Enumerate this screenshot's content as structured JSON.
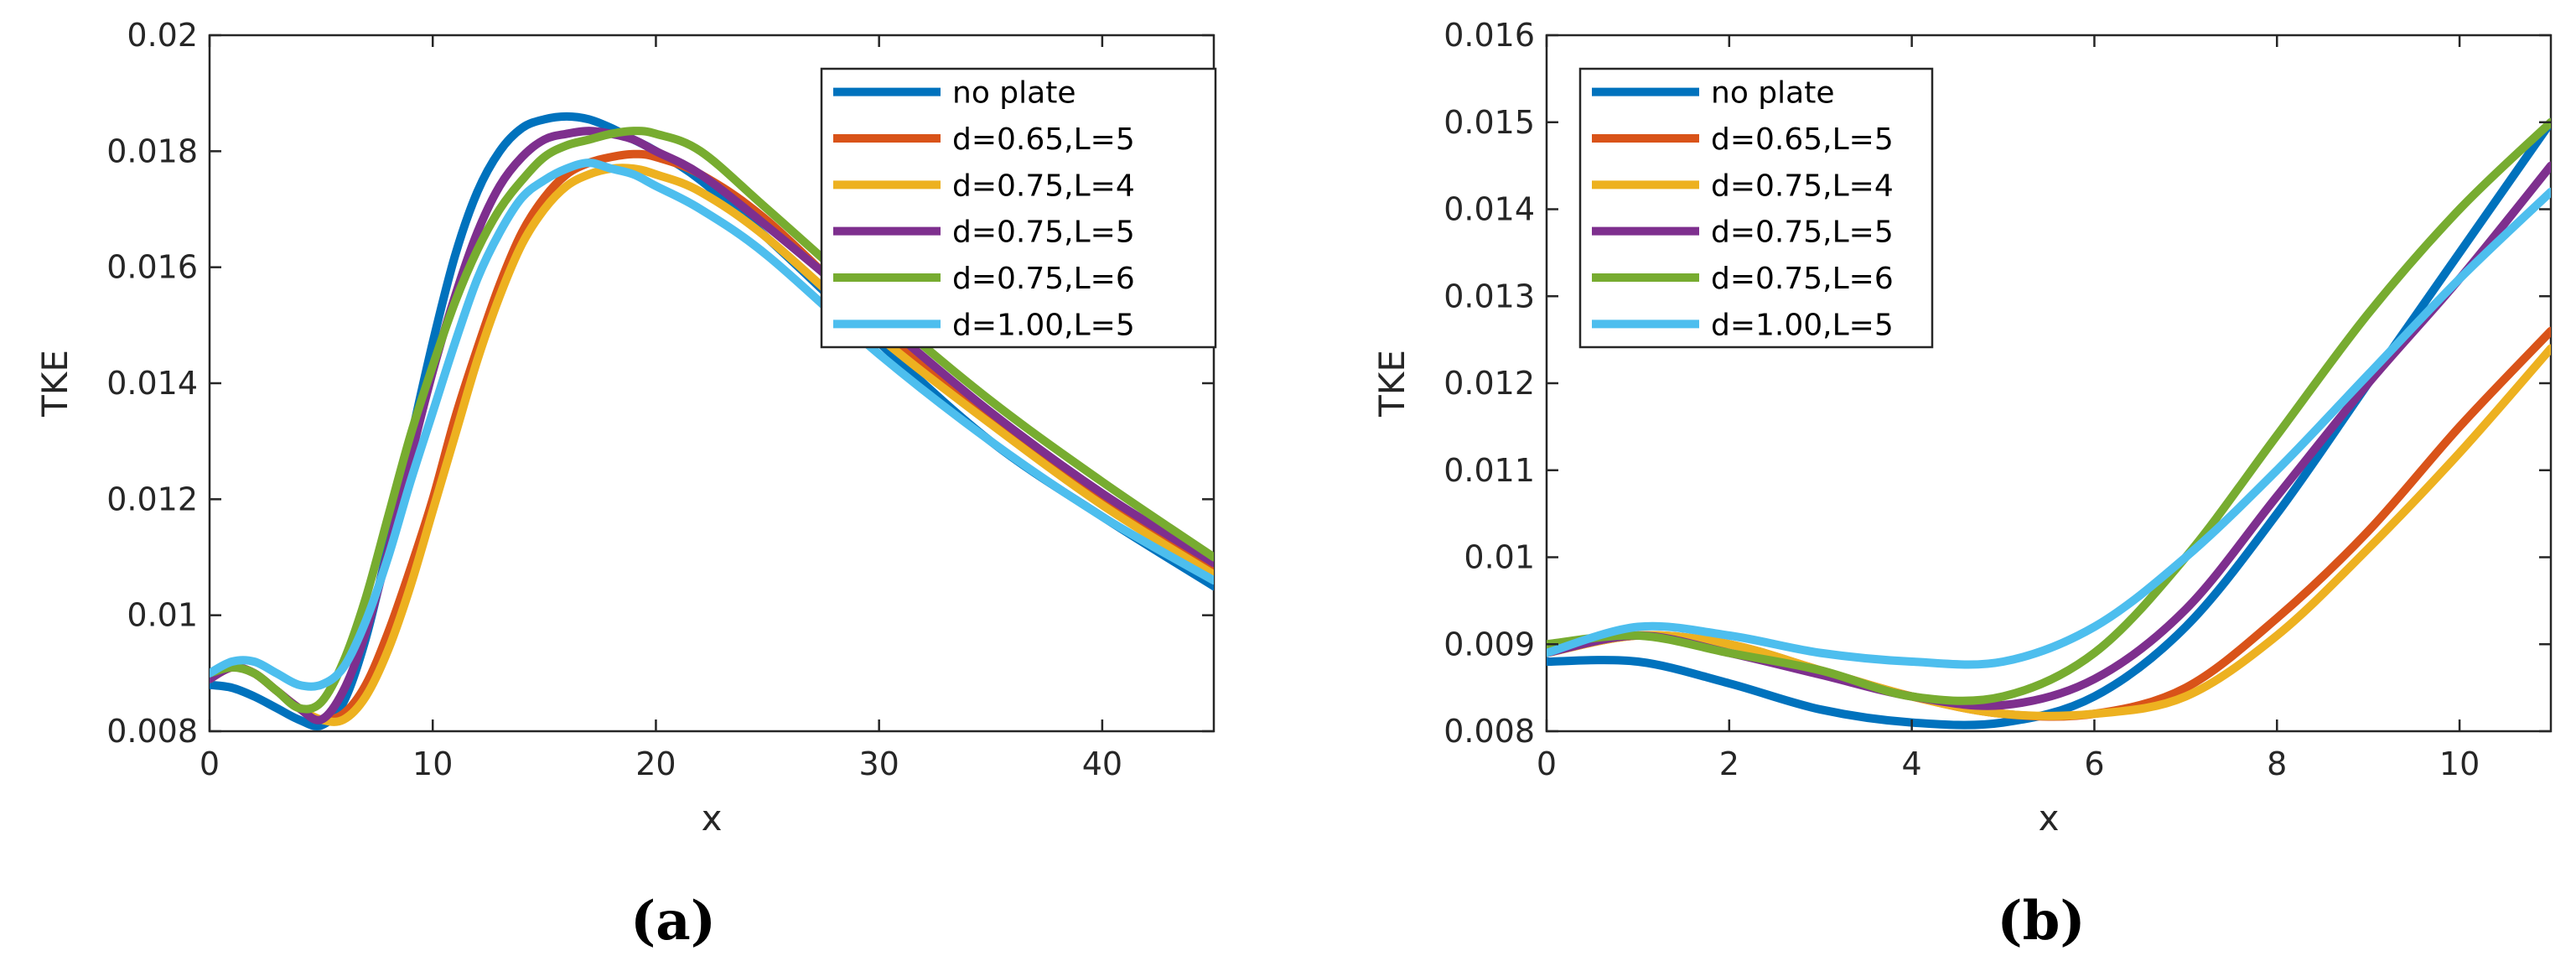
{
  "chart_data": [
    {
      "panel": "(a)",
      "type": "line",
      "xlabel": "x",
      "ylabel": "TKE",
      "xlim": [
        0,
        45
      ],
      "ylim": [
        0.008,
        0.02
      ],
      "xticks": [
        0,
        10,
        20,
        30,
        40
      ],
      "xtick_labels": [
        "0",
        "10",
        "20",
        "30",
        "40"
      ],
      "yticks": [
        0.008,
        0.01,
        0.012,
        0.014,
        0.016,
        0.018,
        0.02
      ],
      "ytick_labels": [
        "0.008",
        "0.01",
        "0.012",
        "0.014",
        "0.016",
        "0.018",
        "0.02"
      ],
      "legend_position": "top-right",
      "series": [
        {
          "name": "no plate",
          "color": "#0072BD",
          "x": [
            0,
            1,
            2,
            3,
            4,
            5,
            6,
            7,
            8,
            9,
            10,
            11,
            12,
            13,
            14,
            15,
            16,
            17,
            18,
            19,
            20,
            22,
            25,
            30,
            35,
            40,
            45
          ],
          "y": [
            0.0088,
            0.00875,
            0.0086,
            0.0084,
            0.0082,
            0.0081,
            0.0085,
            0.0096,
            0.0112,
            0.013,
            0.0147,
            0.0162,
            0.0173,
            0.018,
            0.0184,
            0.01855,
            0.0186,
            0.01855,
            0.0184,
            0.0182,
            0.018,
            0.0175,
            0.0165,
            0.0147,
            0.013,
            0.0117,
            0.0105
          ]
        },
        {
          "name": "d=0.65,L=5",
          "color": "#D95319",
          "x": [
            0,
            1,
            2,
            3,
            4,
            5,
            6,
            7,
            8,
            9,
            10,
            11,
            12,
            13,
            14,
            15,
            16,
            17,
            18,
            19,
            20,
            22,
            25,
            30,
            35,
            40,
            45
          ],
          "y": [
            0.0089,
            0.0091,
            0.009,
            0.0087,
            0.0084,
            0.0082,
            0.0083,
            0.0088,
            0.0097,
            0.0108,
            0.012,
            0.0134,
            0.0146,
            0.0157,
            0.0166,
            0.0172,
            0.0176,
            0.0178,
            0.0179,
            0.01795,
            0.0179,
            0.0176,
            0.0168,
            0.015,
            0.0134,
            0.012,
            0.0108
          ]
        },
        {
          "name": "d=0.75,L=4",
          "color": "#EDB120",
          "x": [
            0,
            1,
            2,
            3,
            4,
            5,
            6,
            7,
            8,
            9,
            10,
            11,
            12,
            13,
            14,
            15,
            16,
            17,
            18,
            19,
            20,
            22,
            25,
            30,
            35,
            40,
            45
          ],
          "y": [
            0.0089,
            0.0091,
            0.009,
            0.0087,
            0.0084,
            0.0082,
            0.0082,
            0.0086,
            0.0094,
            0.0105,
            0.0118,
            0.0131,
            0.0144,
            0.0155,
            0.0164,
            0.017,
            0.0174,
            0.0176,
            0.0177,
            0.0177,
            0.0176,
            0.0173,
            0.0165,
            0.0148,
            0.0133,
            0.0119,
            0.0107
          ]
        },
        {
          "name": "d=0.75,L=5",
          "color": "#7E2F8E",
          "x": [
            0,
            1,
            2,
            3,
            4,
            5,
            6,
            7,
            8,
            9,
            10,
            11,
            12,
            13,
            14,
            15,
            16,
            17,
            18,
            19,
            20,
            22,
            25,
            30,
            35,
            40,
            45
          ],
          "y": [
            0.0089,
            0.0091,
            0.009,
            0.0087,
            0.0084,
            0.0082,
            0.0087,
            0.0097,
            0.0111,
            0.0127,
            0.0142,
            0.0155,
            0.0166,
            0.0174,
            0.0179,
            0.0182,
            0.0183,
            0.01835,
            0.0183,
            0.0182,
            0.018,
            0.0176,
            0.0167,
            0.0151,
            0.0135,
            0.0121,
            0.0109
          ]
        },
        {
          "name": "d=0.75,L=6",
          "color": "#77AC30",
          "x": [
            0,
            1,
            2,
            3,
            4,
            5,
            6,
            7,
            8,
            9,
            10,
            11,
            12,
            13,
            14,
            15,
            16,
            17,
            18,
            19,
            20,
            22,
            25,
            30,
            35,
            40,
            45
          ],
          "y": [
            0.009,
            0.0091,
            0.009,
            0.0087,
            0.0084,
            0.0085,
            0.0092,
            0.0103,
            0.0117,
            0.0131,
            0.0143,
            0.0154,
            0.0163,
            0.017,
            0.0175,
            0.0179,
            0.0181,
            0.0182,
            0.0183,
            0.01835,
            0.0183,
            0.018,
            0.017,
            0.0153,
            0.0137,
            0.0123,
            0.011
          ]
        },
        {
          "name": "d=1.00,L=5",
          "color": "#4DBEEE",
          "x": [
            0,
            1,
            2,
            3,
            4,
            5,
            6,
            7,
            8,
            9,
            10,
            11,
            12,
            13,
            14,
            15,
            16,
            17,
            18,
            19,
            20,
            22,
            25,
            30,
            35,
            40,
            45
          ],
          "y": [
            0.009,
            0.0092,
            0.0092,
            0.009,
            0.0088,
            0.0088,
            0.0091,
            0.0099,
            0.011,
            0.0123,
            0.0135,
            0.0147,
            0.0158,
            0.0166,
            0.0172,
            0.0175,
            0.0177,
            0.0178,
            0.0177,
            0.0176,
            0.0174,
            0.017,
            0.0162,
            0.0145,
            0.013,
            0.0117,
            0.0106
          ]
        }
      ]
    },
    {
      "panel": "(b)",
      "type": "line",
      "xlabel": "x",
      "ylabel": "TKE",
      "xlim": [
        0,
        11
      ],
      "ylim": [
        0.008,
        0.016
      ],
      "xticks": [
        0,
        2,
        4,
        6,
        8,
        10
      ],
      "xtick_labels": [
        "0",
        "2",
        "4",
        "6",
        "8",
        "10"
      ],
      "yticks": [
        0.008,
        0.009,
        0.01,
        0.011,
        0.012,
        0.013,
        0.014,
        0.015,
        0.016
      ],
      "ytick_labels": [
        "0.008",
        "0.009",
        "0.01",
        "0.011",
        "0.012",
        "0.013",
        "0.014",
        "0.015",
        "0.016"
      ],
      "legend_position": "top-left",
      "series": [
        {
          "name": "no plate",
          "color": "#0072BD",
          "x": [
            0,
            1,
            2,
            3,
            4,
            5,
            6,
            7,
            8,
            9,
            10,
            11
          ],
          "y": [
            0.0088,
            0.0088,
            0.00855,
            0.00825,
            0.0081,
            0.0081,
            0.0084,
            0.0092,
            0.0105,
            0.012,
            0.0135,
            0.015
          ]
        },
        {
          "name": "d=0.65,L=5",
          "color": "#D95319",
          "x": [
            0,
            1,
            2,
            3,
            4,
            5,
            6,
            7,
            8,
            9,
            10,
            11
          ],
          "y": [
            0.0089,
            0.0091,
            0.009,
            0.0087,
            0.0084,
            0.0082,
            0.0082,
            0.0085,
            0.0093,
            0.0103,
            0.0115,
            0.0126
          ]
        },
        {
          "name": "d=0.75,L=4",
          "color": "#EDB120",
          "x": [
            0,
            1,
            2,
            3,
            4,
            5,
            6,
            7,
            8,
            9,
            10,
            11
          ],
          "y": [
            0.0089,
            0.0091,
            0.009,
            0.0087,
            0.0084,
            0.0082,
            0.0082,
            0.0084,
            0.0091,
            0.0101,
            0.0112,
            0.0124
          ]
        },
        {
          "name": "d=0.75,L=5",
          "color": "#7E2F8E",
          "x": [
            0,
            1,
            2,
            3,
            4,
            5,
            6,
            7,
            8,
            9,
            10,
            11
          ],
          "y": [
            0.0089,
            0.0091,
            0.0089,
            0.00865,
            0.0084,
            0.0083,
            0.0086,
            0.0094,
            0.0107,
            0.012,
            0.0132,
            0.0145
          ]
        },
        {
          "name": "d=0.75,L=6",
          "color": "#77AC30",
          "x": [
            0,
            1,
            2,
            3,
            4,
            5,
            6,
            7,
            8,
            9,
            10,
            11
          ],
          "y": [
            0.009,
            0.0091,
            0.0089,
            0.0087,
            0.0084,
            0.0084,
            0.0089,
            0.01,
            0.0114,
            0.0128,
            0.014,
            0.015
          ]
        },
        {
          "name": "d=1.00,L=5",
          "color": "#4DBEEE",
          "x": [
            0,
            1,
            2,
            3,
            4,
            5,
            6,
            7,
            8,
            9,
            10,
            11
          ],
          "y": [
            0.0089,
            0.0092,
            0.0091,
            0.0089,
            0.0088,
            0.0088,
            0.0092,
            0.01,
            0.011,
            0.0121,
            0.0132,
            0.0142
          ]
        }
      ]
    }
  ]
}
